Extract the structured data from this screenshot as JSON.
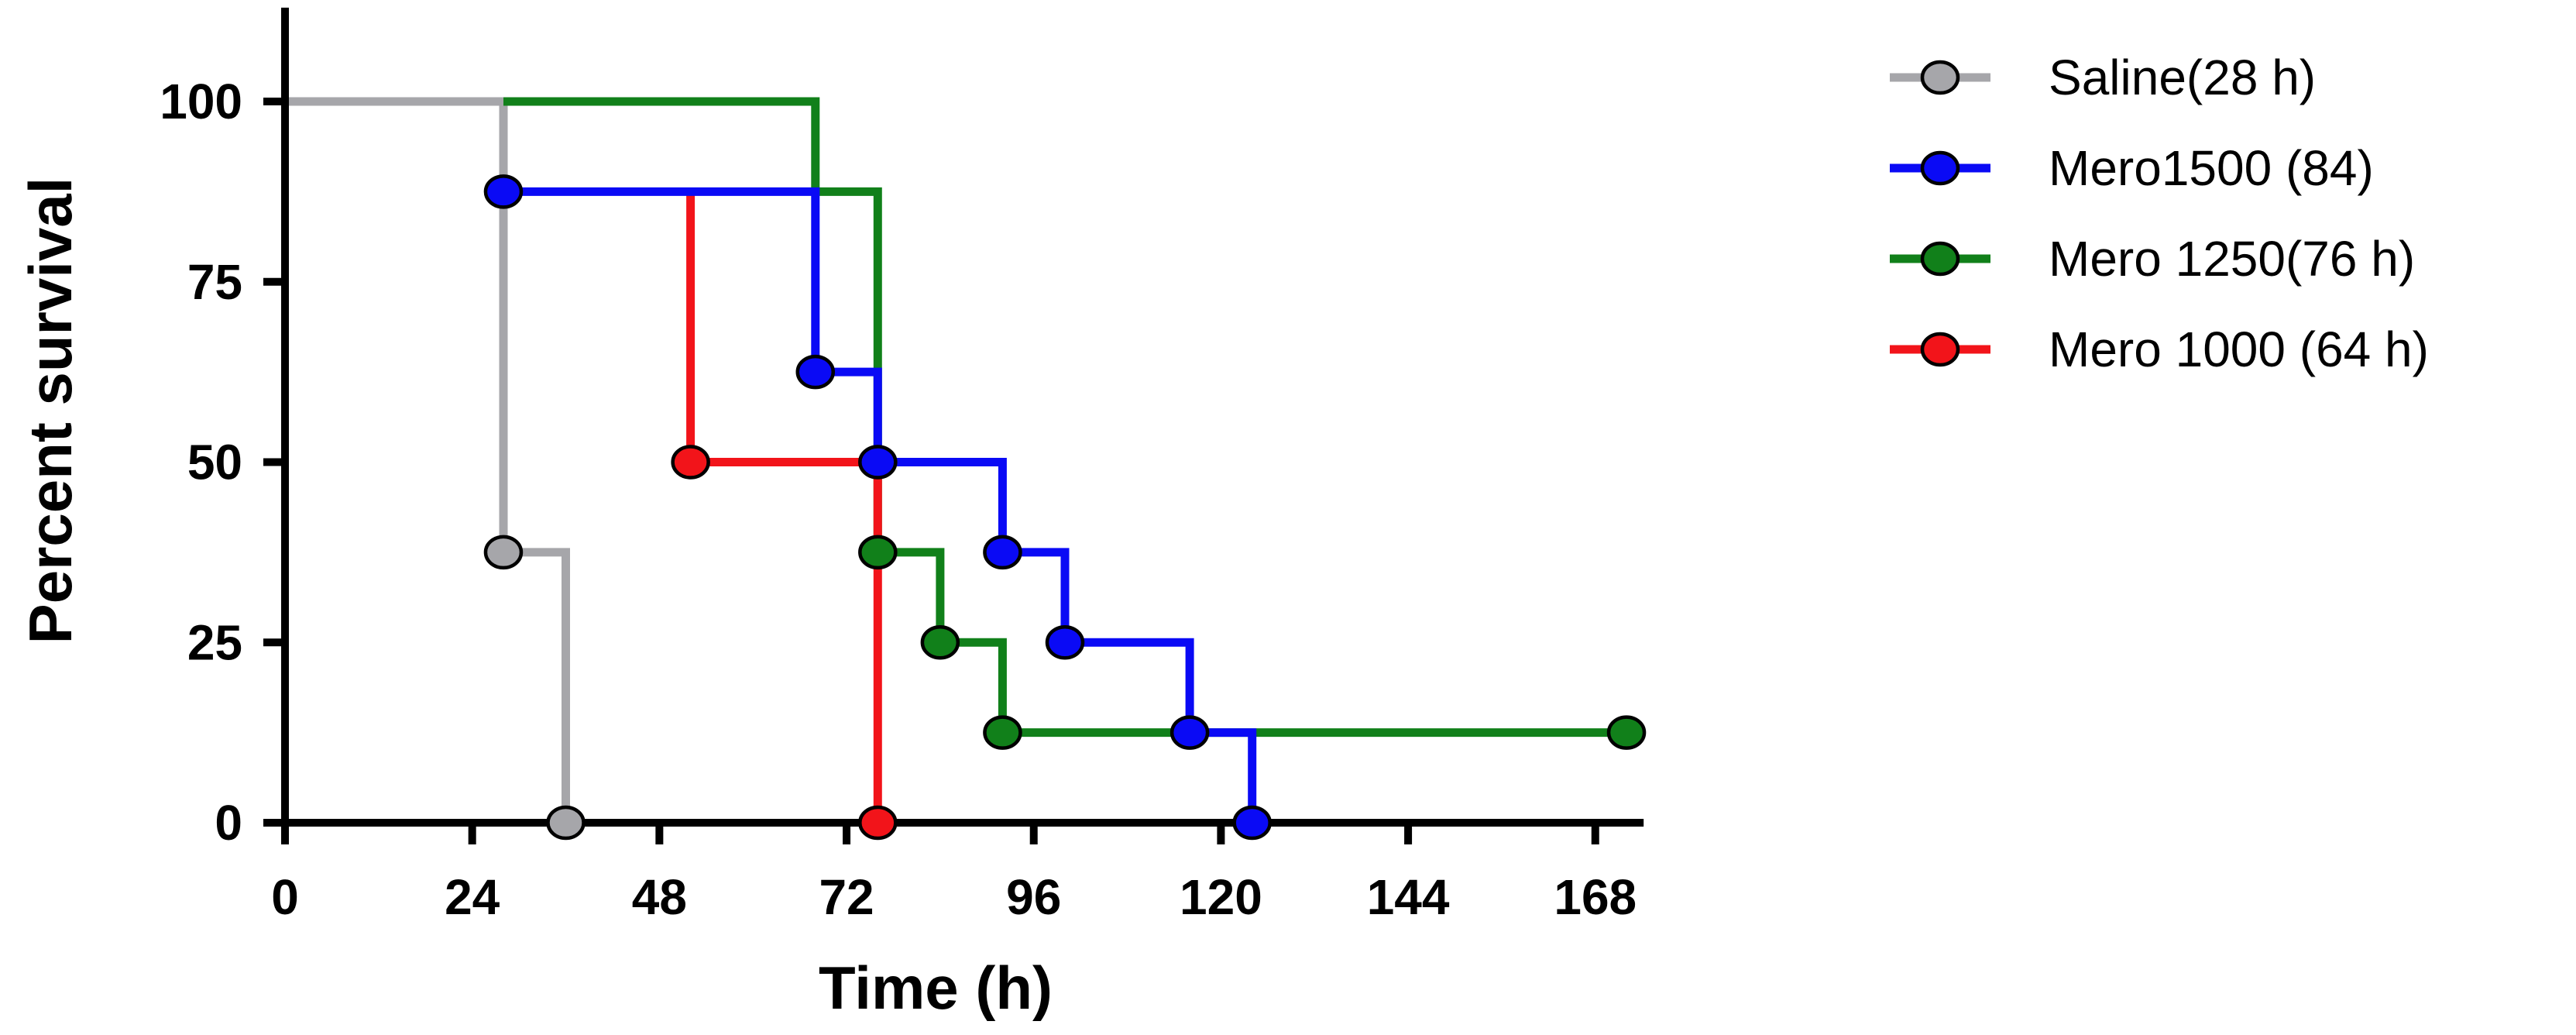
{
  "chart_data": {
    "type": "line",
    "subtype": "kaplan-meier-step",
    "title": "",
    "xlabel": "Time (h)",
    "ylabel": "Percent survival",
    "xlim": [
      0,
      174
    ],
    "ylim": [
      0,
      110
    ],
    "xticks": [
      0,
      24,
      48,
      72,
      96,
      120,
      144,
      168
    ],
    "yticks": [
      0,
      25,
      50,
      75,
      100
    ],
    "legend_position": "top-right",
    "series": [
      {
        "name": "Saline(28 h)",
        "color": "#a6a6aa",
        "steps": [
          [
            0,
            100
          ],
          [
            28,
            100
          ],
          [
            28,
            37.5
          ],
          [
            36,
            37.5
          ],
          [
            36,
            0
          ]
        ],
        "markers": [
          [
            28,
            37.5
          ],
          [
            36,
            0
          ]
        ]
      },
      {
        "name": "Mero1500 (84)",
        "color": "#0a0af5",
        "steps": [
          [
            28,
            87.5
          ],
          [
            68,
            87.5
          ],
          [
            68,
            62.5
          ],
          [
            76,
            62.5
          ],
          [
            76,
            50
          ],
          [
            92,
            50
          ],
          [
            92,
            37.5
          ],
          [
            100,
            37.5
          ],
          [
            100,
            25
          ],
          [
            116,
            25
          ],
          [
            116,
            12.5
          ],
          [
            124,
            12.5
          ],
          [
            124,
            0
          ]
        ],
        "markers": [
          [
            28,
            87.5
          ],
          [
            68,
            62.5
          ],
          [
            76,
            50
          ],
          [
            92,
            37.5
          ],
          [
            100,
            25
          ],
          [
            116,
            12.5
          ],
          [
            124,
            0
          ]
        ]
      },
      {
        "name": "Mero 1250(76 h)",
        "color": "#11801a",
        "steps": [
          [
            28,
            100
          ],
          [
            68,
            100
          ],
          [
            68,
            87.5
          ],
          [
            76,
            87.5
          ],
          [
            76,
            37.5
          ],
          [
            84,
            37.5
          ],
          [
            84,
            25
          ],
          [
            92,
            25
          ],
          [
            92,
            12.5
          ],
          [
            172,
            12.5
          ]
        ],
        "markers": [
          [
            76,
            37.5
          ],
          [
            84,
            25
          ],
          [
            92,
            12.5
          ],
          [
            172,
            12.5
          ]
        ]
      },
      {
        "name": "Mero 1000 (64 h)",
        "color": "#f2141a",
        "steps": [
          [
            52,
            87.5
          ],
          [
            52,
            50
          ],
          [
            76,
            50
          ],
          [
            76,
            0
          ]
        ],
        "markers": [
          [
            52,
            50
          ],
          [
            76,
            0
          ]
        ]
      }
    ],
    "draw_order": [
      0,
      2,
      3,
      1
    ]
  }
}
